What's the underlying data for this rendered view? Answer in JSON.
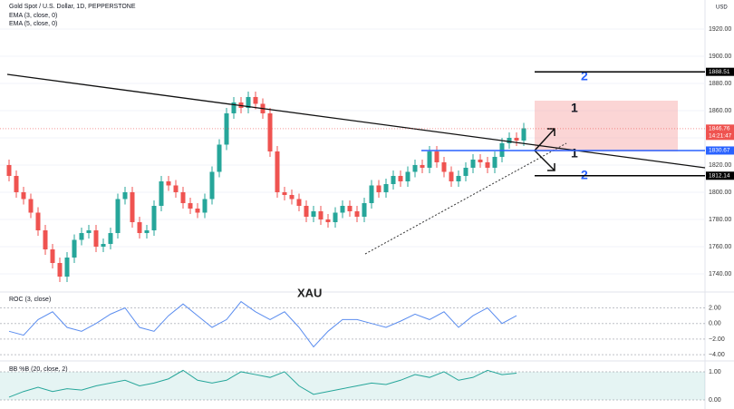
{
  "chart_data": {
    "type": "candlestick",
    "title": "Gold Spot / U.S. Dollar, 1D, PEPPERSTONE",
    "legend": [
      "EMA (3, close, 0)",
      "EMA (5, close, 0)"
    ],
    "currency": "USD",
    "watermark": "XAU",
    "countdown": "14:21:47",
    "up_color": "#26a69a",
    "down_color": "#ef5350",
    "ylim": [
      1728,
      1941.3
    ],
    "yticks": [
      {
        "value": 1920,
        "label": "1920.00"
      },
      {
        "value": 1900,
        "label": "1900.00"
      },
      {
        "value": 1880,
        "label": "1880.00"
      },
      {
        "value": 1860,
        "label": "1860.00"
      },
      {
        "value": 1840,
        "label": "1840.00"
      },
      {
        "value": 1820,
        "label": "1820.00"
      },
      {
        "value": 1800,
        "label": "1800.00"
      },
      {
        "value": 1780,
        "label": "1780.00"
      },
      {
        "value": 1760,
        "label": "1760.00"
      },
      {
        "value": 1740,
        "label": "1740.00"
      }
    ],
    "open": [
      1820,
      1812,
      1800,
      1795,
      1785,
      1772,
      1758,
      1748,
      1738,
      1752,
      1765,
      1770,
      1772,
      1760,
      1762,
      1770,
      1795,
      1800,
      1778,
      1770,
      1772,
      1790,
      1808,
      1805,
      1800,
      1792,
      1788,
      1785,
      1795,
      1815,
      1835,
      1858,
      1866,
      1862,
      1870,
      1865,
      1858,
      1830,
      1800,
      1798,
      1795,
      1790,
      1782,
      1786,
      1780,
      1778,
      1785,
      1790,
      1786,
      1782,
      1792,
      1805,
      1800,
      1806,
      1812,
      1808,
      1815,
      1820,
      1818,
      1830,
      1822,
      1815,
      1808,
      1812,
      1818,
      1824,
      1822,
      1818,
      1826,
      1836,
      1840,
      1838
    ],
    "high": [
      1824,
      1816,
      1804,
      1799,
      1789,
      1776,
      1762,
      1752,
      1756,
      1769,
      1774,
      1776,
      1776,
      1766,
      1774,
      1799,
      1804,
      1804,
      1782,
      1776,
      1794,
      1812,
      1812,
      1809,
      1804,
      1796,
      1792,
      1799,
      1819,
      1839,
      1862,
      1870,
      1870,
      1874,
      1874,
      1869,
      1862,
      1834,
      1804,
      1802,
      1799,
      1794,
      1790,
      1790,
      1784,
      1789,
      1794,
      1794,
      1790,
      1796,
      1809,
      1809,
      1810,
      1816,
      1816,
      1819,
      1824,
      1824,
      1834,
      1834,
      1826,
      1819,
      1816,
      1822,
      1828,
      1828,
      1826,
      1830,
      1840,
      1844,
      1844,
      1851
    ],
    "low": [
      1808,
      1796,
      1791,
      1781,
      1768,
      1754,
      1744,
      1734,
      1734,
      1748,
      1761,
      1766,
      1756,
      1756,
      1758,
      1766,
      1791,
      1774,
      1766,
      1766,
      1768,
      1786,
      1801,
      1796,
      1788,
      1784,
      1781,
      1781,
      1791,
      1811,
      1831,
      1854,
      1858,
      1858,
      1861,
      1854,
      1826,
      1796,
      1794,
      1791,
      1786,
      1778,
      1778,
      1776,
      1774,
      1774,
      1781,
      1782,
      1778,
      1778,
      1788,
      1796,
      1796,
      1802,
      1804,
      1804,
      1811,
      1814,
      1814,
      1818,
      1811,
      1804,
      1804,
      1808,
      1814,
      1818,
      1814,
      1814,
      1822,
      1832,
      1834,
      1834
    ],
    "close": [
      1812,
      1800,
      1795,
      1785,
      1772,
      1758,
      1748,
      1738,
      1752,
      1765,
      1770,
      1772,
      1760,
      1762,
      1770,
      1795,
      1800,
      1778,
      1770,
      1772,
      1790,
      1808,
      1805,
      1800,
      1792,
      1788,
      1785,
      1795,
      1815,
      1835,
      1858,
      1866,
      1862,
      1870,
      1865,
      1858,
      1830,
      1800,
      1798,
      1795,
      1790,
      1782,
      1786,
      1780,
      1778,
      1785,
      1790,
      1786,
      1782,
      1792,
      1805,
      1800,
      1806,
      1812,
      1808,
      1815,
      1820,
      1818,
      1830,
      1822,
      1815,
      1808,
      1812,
      1818,
      1824,
      1822,
      1818,
      1826,
      1836,
      1840,
      1838,
      1847
    ],
    "price_markers": [
      {
        "value": 1888.51,
        "color": "#000000"
      },
      {
        "value": 1846.76,
        "color": "#ef5350"
      },
      {
        "value": 1830.67,
        "color": "#2962ff"
      },
      {
        "value": 1812.14,
        "color": "#000000"
      }
    ],
    "annotations": [
      "1",
      "1",
      "2",
      "2"
    ],
    "panels": [
      {
        "title": "ROC (3, close)",
        "color": "#5b8def",
        "ylim": [
          -4.8,
          3.8
        ],
        "yticks": [
          {
            "value": 2,
            "label": "2.00"
          },
          {
            "value": 0,
            "label": "0.00"
          },
          {
            "value": -2,
            "label": "−2.00"
          },
          {
            "value": -4,
            "label": "−4.00"
          }
        ],
        "values": [
          -1,
          -1.5,
          0.5,
          1.5,
          -0.5,
          -1,
          0,
          1.2,
          2,
          -0.5,
          -1,
          1,
          2.5,
          1,
          -0.5,
          0.5,
          2.8,
          1.5,
          0.5,
          1.5,
          -0.5,
          -3,
          -1,
          0.5,
          0.5,
          0,
          -0.5,
          0.3,
          1.2,
          0.5,
          1.5,
          -0.5,
          1,
          2,
          0,
          1
        ]
      },
      {
        "title": "BB %B (20, close, 2)",
        "color": "#26a69a",
        "ylim": [
          -0.32,
          1.32
        ],
        "yticks": [
          {
            "value": 1,
            "label": "1.00"
          },
          {
            "value": 0,
            "label": "0.00"
          }
        ],
        "values": [
          0.1,
          0.3,
          0.45,
          0.3,
          0.4,
          0.35,
          0.5,
          0.6,
          0.7,
          0.5,
          0.6,
          0.75,
          1.05,
          0.7,
          0.6,
          0.7,
          1.0,
          0.9,
          0.8,
          1.0,
          0.5,
          0.2,
          0.3,
          0.4,
          0.5,
          0.6,
          0.55,
          0.7,
          0.9,
          0.8,
          1.0,
          0.7,
          0.8,
          1.05,
          0.9,
          0.95
        ]
      }
    ]
  }
}
